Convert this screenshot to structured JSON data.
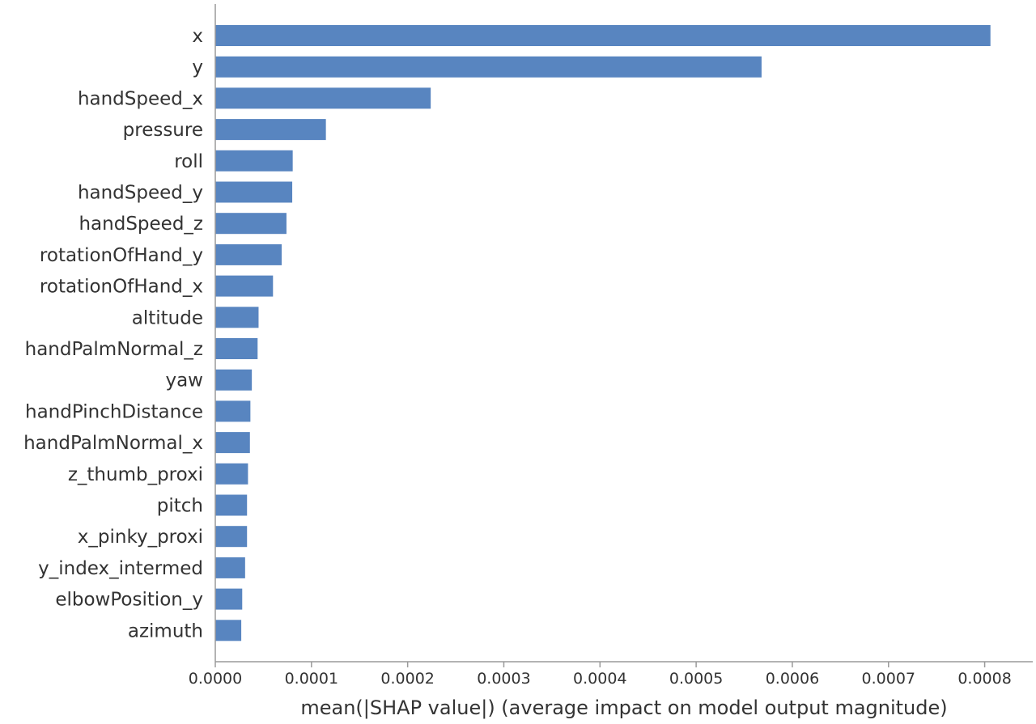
{
  "chart_data": {
    "type": "bar",
    "orientation": "horizontal",
    "title": "",
    "xlabel": "mean(|SHAP value|) (average impact on model output magnitude)",
    "ylabel": "",
    "bar_color": "#5885c0",
    "axis_color": "#9a9a9a",
    "text_color": "#333333",
    "xlim": [
      0,
      0.00085
    ],
    "xticks": [
      0,
      0.0001,
      0.0002,
      0.0003,
      0.0004,
      0.0005,
      0.0006,
      0.0007,
      0.0008
    ],
    "xtick_labels": [
      "0.0000",
      "0.0001",
      "0.0002",
      "0.0003",
      "0.0004",
      "0.0005",
      "0.0006",
      "0.0007",
      "0.0008"
    ],
    "grid": false,
    "categories": [
      "x",
      "y",
      "handSpeed_x",
      "pressure",
      "roll",
      "handSpeed_y",
      "handSpeed_z",
      "rotationOfHand_y",
      "rotationOfHand_x",
      "altitude",
      "handPalmNormal_z",
      "yaw",
      "handPinchDistance",
      "handPalmNormal_x",
      "z_thumb_proxi",
      "pitch",
      "x_pinky_proxi",
      "y_index_intermed",
      "elbowPosition_y",
      "azimuth"
    ],
    "values": [
      0.000806,
      0.000568,
      0.000224,
      0.000115,
      8.05e-05,
      8e-05,
      7.4e-05,
      6.9e-05,
      6e-05,
      4.5e-05,
      4.4e-05,
      3.8e-05,
      3.65e-05,
      3.6e-05,
      3.4e-05,
      3.3e-05,
      3.3e-05,
      3.1e-05,
      2.8e-05,
      2.7e-05
    ]
  }
}
